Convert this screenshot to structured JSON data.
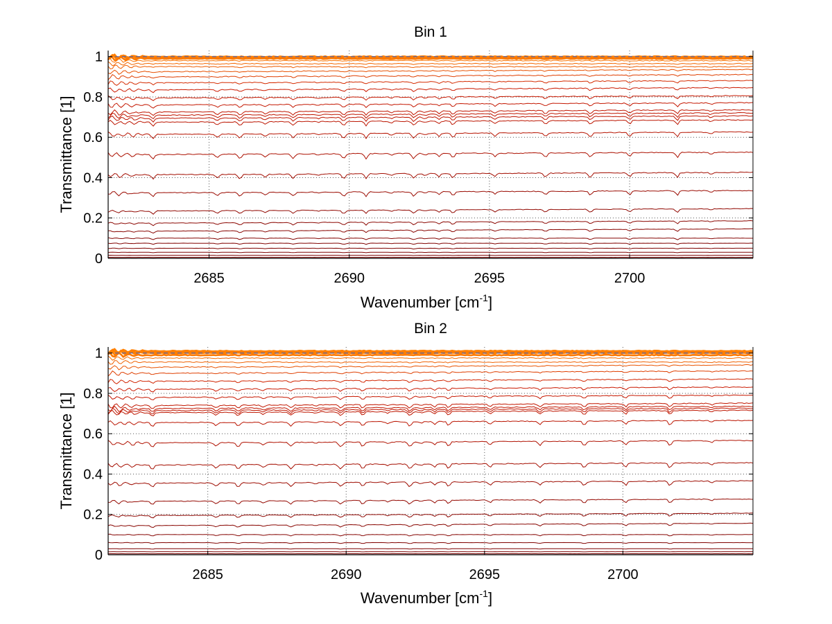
{
  "chart_data": [
    {
      "type": "line",
      "title": "Bin 1",
      "xlabel": "Wavenumber [cm",
      "xlabel_sup": "-1",
      "xlabel_suffix": "]",
      "ylabel": "Transmittance [1]",
      "xlim": [
        2681.4,
        2704.4
      ],
      "ylim": [
        0,
        1.03
      ],
      "xticks": [
        2685,
        2690,
        2695,
        2700
      ],
      "yticks": [
        0,
        0.2,
        0.4,
        0.6,
        0.8,
        1
      ],
      "ytick_labels": [
        "0",
        "0.2",
        "0.4",
        "0.6",
        "0.8",
        "1"
      ],
      "grid": true,
      "series_levels": [
        1.0,
        0.997,
        0.99,
        0.98,
        0.965,
        0.95,
        0.93,
        0.905,
        0.875,
        0.84,
        0.8,
        0.765,
        0.73,
        0.715,
        0.7,
        0.68,
        0.62,
        0.52,
        0.42,
        0.33,
        0.24,
        0.18,
        0.14,
        0.1,
        0.075,
        0.05,
        0.03,
        0.015,
        0.005
      ],
      "absorption_lines": [
        2681.8,
        2682.3,
        2683.0,
        2685.3,
        2686.1,
        2687.0,
        2688.0,
        2688.9,
        2689.8,
        2690.6,
        2691.5,
        2692.3,
        2692.7,
        2693.2,
        2693.7,
        2695.2,
        2697.0,
        2698.6,
        2700.0,
        2701.7,
        2702.9
      ],
      "reference_level": 1.0
    },
    {
      "type": "line",
      "title": "Bin 2",
      "xlabel": "Wavenumber [cm",
      "xlabel_sup": "-1",
      "xlabel_suffix": "]",
      "ylabel": "Transmittance [1]",
      "xlim": [
        2681.4,
        2704.7
      ],
      "ylim": [
        0,
        1.03
      ],
      "xticks": [
        2685,
        2690,
        2695,
        2700
      ],
      "yticks": [
        0,
        0.2,
        0.4,
        0.6,
        0.8,
        1
      ],
      "ytick_labels": [
        "0",
        "0.2",
        "0.4",
        "0.6",
        "0.8",
        "1"
      ],
      "grid": true,
      "series_levels": [
        1.01,
        1.005,
        1.0,
        0.99,
        0.975,
        0.955,
        0.935,
        0.905,
        0.865,
        0.825,
        0.785,
        0.745,
        0.73,
        0.72,
        0.71,
        0.66,
        0.56,
        0.45,
        0.36,
        0.27,
        0.2,
        0.15,
        0.1,
        0.06,
        0.03,
        0.015,
        0.005
      ],
      "absorption_lines": [
        2681.8,
        2682.3,
        2683.0,
        2685.3,
        2686.1,
        2687.0,
        2688.0,
        2688.9,
        2689.8,
        2690.6,
        2691.5,
        2692.3,
        2692.7,
        2693.2,
        2693.7,
        2695.2,
        2697.0,
        2698.6,
        2700.1,
        2701.7,
        2703.2
      ],
      "reference_level": 1.0
    }
  ],
  "colors": {
    "dark": "#7a0000",
    "mid": "#cc1a00",
    "light": "#ff7f00",
    "reference": "#4060c0",
    "axis": "#000000",
    "grid": "#555555"
  }
}
